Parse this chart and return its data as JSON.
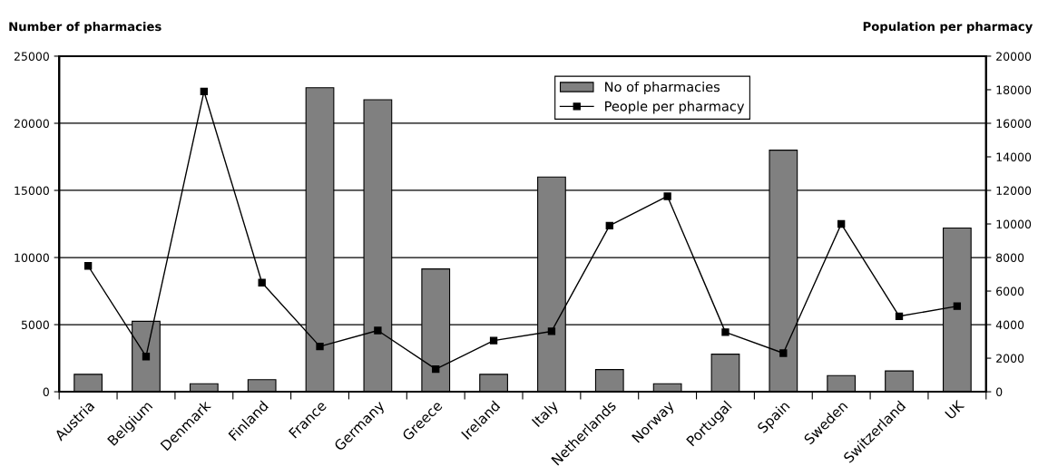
{
  "chart_data": {
    "type": "bar",
    "categories": [
      "Austria",
      "Belgium",
      "Denmark",
      "Finland",
      "France",
      "Germany",
      "Greece",
      "Ireland",
      "Italy",
      "Netherlands",
      "Norway",
      "Portugal",
      "Spain",
      "Sweden",
      "Switzerland",
      "UK"
    ],
    "ylabel": "Number of pharmacies",
    "y2label": "Population per pharmacy",
    "ylim": [
      0,
      25000
    ],
    "yticks": [
      0,
      5000,
      10000,
      15000,
      20000,
      25000
    ],
    "y2lim": [
      0,
      20000
    ],
    "y2ticks": [
      0,
      2000,
      4000,
      6000,
      8000,
      10000,
      12000,
      14000,
      16000,
      18000,
      20000
    ],
    "grid": "y",
    "legend": "top",
    "series": [
      {
        "name": "No of pharmacies",
        "color": "#808080",
        "values": [
          1300,
          5250,
          600,
          900,
          22650,
          21750,
          9150,
          1300,
          16000,
          1650,
          600,
          2800,
          18000,
          1200,
          1550,
          12200
        ]
      },
      {
        "name": "People per pharmacy",
        "type": "line",
        "axis": "y2",
        "color": "#000000",
        "marker": "square",
        "line_style": "solid",
        "values": [
          7500,
          2100,
          17900,
          6500,
          2700,
          3650,
          1350,
          3050,
          3600,
          9900,
          11650,
          3550,
          2300,
          10000,
          4500,
          5100
        ]
      }
    ]
  }
}
